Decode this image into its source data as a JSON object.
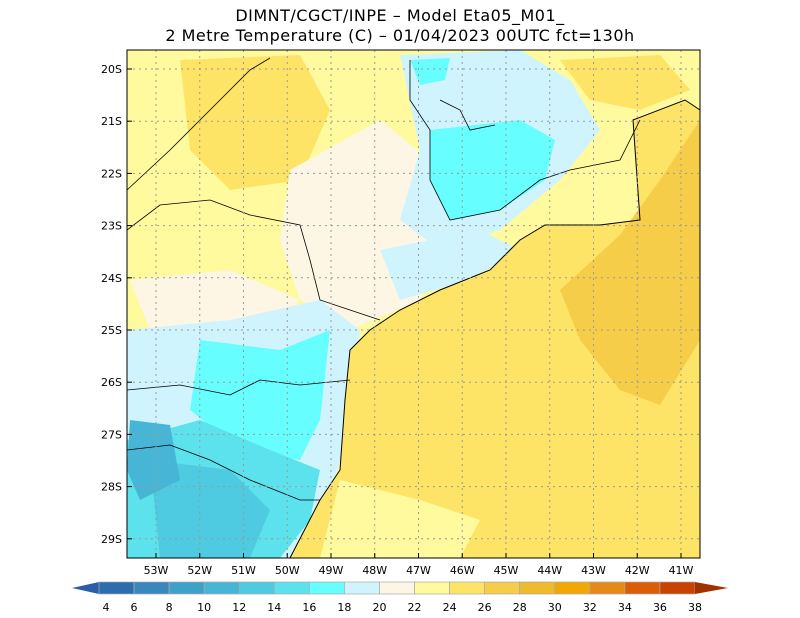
{
  "title": {
    "line1": "DIMNT/CGCT/INPE –  Model Eta05_M01_",
    "line2": "2 Metre Temperature (C) –  01/04/2023 00UTC fct=130h"
  },
  "lat_labels": [
    "20S",
    "21S",
    "22S",
    "23S",
    "24S",
    "25S",
    "26S",
    "27S",
    "28S",
    "29S"
  ],
  "lon_labels": [
    "53W",
    "52W",
    "51W",
    "50W",
    "49W",
    "48W",
    "47W",
    "46W",
    "45W",
    "44W",
    "43W",
    "42W",
    "41W"
  ],
  "colorbar": {
    "labels": [
      "4",
      "6",
      "8",
      "10",
      "12",
      "14",
      "16",
      "18",
      "20",
      "22",
      "24",
      "26",
      "28",
      "30",
      "32",
      "34",
      "36",
      "38"
    ],
    "colors": [
      "#2c6dad",
      "#3888bc",
      "#3ea1c8",
      "#47b6d6",
      "#4ecbe0",
      "#5ce2ec",
      "#66fefe",
      "#cff4fd",
      "#fdf6e5",
      "#fffa9d",
      "#fde466",
      "#f6cd48",
      "#eebb2c",
      "#f2a705",
      "#e58918",
      "#db5d05",
      "#c84302"
    ],
    "low_color": "#2b5ea7",
    "high_color": "#a23100"
  }
}
